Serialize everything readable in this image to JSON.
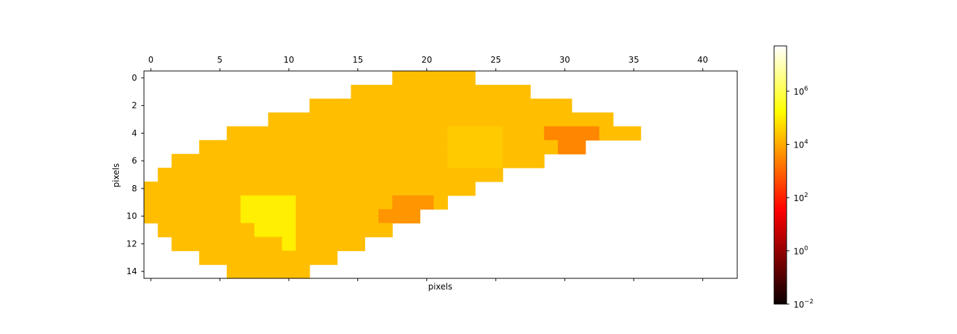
{
  "chart_data": {
    "type": "heatmap",
    "title": "",
    "xlabel": "pixels",
    "ylabel": "pixels",
    "x_range": [
      -0.5,
      42.5
    ],
    "y_range": [
      14.5,
      -0.5
    ],
    "x_ticks": [
      0,
      5,
      10,
      15,
      20,
      25,
      30,
      35,
      40
    ],
    "y_ticks": [
      0,
      2,
      4,
      6,
      8,
      10,
      12,
      14
    ],
    "x_tick_labels": [
      "0",
      "5",
      "10",
      "15",
      "20",
      "25",
      "30",
      "35",
      "40"
    ],
    "y_tick_labels": [
      "0",
      "2",
      "4",
      "6",
      "8",
      "10",
      "12",
      "14"
    ],
    "x_ticks_position": "top",
    "colormap": "hot",
    "color_scale": "log",
    "colorbar": {
      "vmin": 0.01,
      "vmax": 50000000,
      "ticks": [
        {
          "value": 0.01,
          "base": "10",
          "exp": "−2"
        },
        {
          "value": 1,
          "base": "10",
          "exp": "0"
        },
        {
          "value": 100,
          "base": "10",
          "exp": "2"
        },
        {
          "value": 10000,
          "base": "10",
          "exp": "4"
        },
        {
          "value": 1000000,
          "base": "10",
          "exp": "6"
        }
      ],
      "position": "right"
    },
    "base_value": 20000,
    "rows": [
      {
        "row": 0,
        "start": 18,
        "end": 23
      },
      {
        "row": 1,
        "start": 15,
        "end": 27
      },
      {
        "row": 2,
        "start": 12,
        "end": 30
      },
      {
        "row": 3,
        "start": 9,
        "end": 33
      },
      {
        "row": 4,
        "start": 6,
        "end": 35
      },
      {
        "row": 5,
        "start": 4,
        "end": 31
      },
      {
        "row": 6,
        "start": 2,
        "end": 28
      },
      {
        "row": 7,
        "start": 1,
        "end": 25
      },
      {
        "row": 8,
        "start": 0,
        "end": 23
      },
      {
        "row": 9,
        "start": 0,
        "end": 21
      },
      {
        "row": 10,
        "start": 0,
        "end": 19
      },
      {
        "row": 11,
        "start": 1,
        "end": 17
      },
      {
        "row": 12,
        "start": 2,
        "end": 15
      },
      {
        "row": 13,
        "start": 4,
        "end": 13
      },
      {
        "row": 14,
        "start": 6,
        "end": 11
      }
    ],
    "special_cells": [
      {
        "row": 4,
        "cols": [
          22,
          23,
          24,
          25
        ],
        "value": 30000
      },
      {
        "row": 5,
        "cols": [
          22,
          23,
          24,
          25
        ],
        "value": 30000
      },
      {
        "row": 6,
        "cols": [
          22,
          23,
          24,
          25
        ],
        "value": 30000
      },
      {
        "row": 9,
        "cols": [
          7,
          8,
          9,
          10
        ],
        "value": 100000
      },
      {
        "row": 10,
        "cols": [
          7,
          8,
          9,
          10
        ],
        "value": 100000
      },
      {
        "row": 11,
        "cols": [
          8,
          9,
          10
        ],
        "value": 100000
      },
      {
        "row": 12,
        "cols": [
          10
        ],
        "value": 100000
      },
      {
        "row": 4,
        "cols": [
          29,
          30,
          31,
          32
        ],
        "value": 3000
      },
      {
        "row": 5,
        "cols": [
          30,
          31
        ],
        "value": 3000
      },
      {
        "row": 9,
        "cols": [
          18,
          19,
          20
        ],
        "value": 5000
      },
      {
        "row": 10,
        "cols": [
          17,
          18,
          19
        ],
        "value": 5000
      }
    ]
  }
}
